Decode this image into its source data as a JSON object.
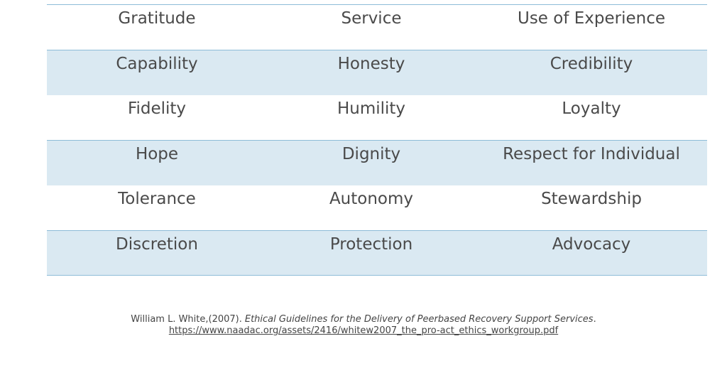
{
  "table": {
    "rows": [
      [
        "Gratitude",
        "Service",
        "Use of Experience"
      ],
      [
        "Capability",
        "Honesty",
        "Credibility"
      ],
      [
        "Fidelity",
        "Humility",
        "Loyalty"
      ],
      [
        "Hope",
        "Dignity",
        "Respect for Individual"
      ],
      [
        "Tolerance",
        "Autonomy",
        "Stewardship"
      ],
      [
        "Discretion",
        "Protection",
        "Advocacy"
      ]
    ]
  },
  "citation": {
    "author": "William L. White,(2007).",
    "title": "Ethical Guidelines for the Delivery of Peerbased Recovery Support Services",
    "end": ".",
    "url": "https://www.naadac.org/assets/2416/whitew2007_the_pro-act_ethics_workgroup.pdf"
  }
}
